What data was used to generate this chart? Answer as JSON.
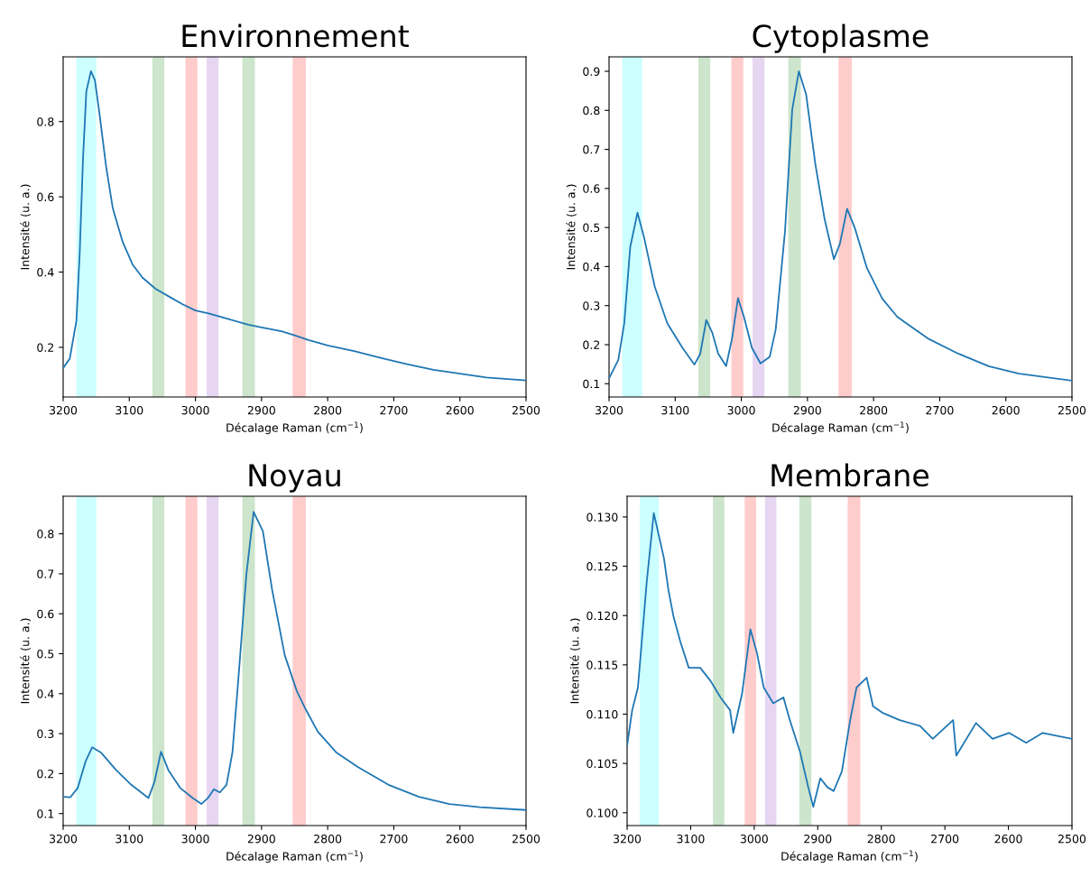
{
  "chart_data": [
    {
      "type": "line",
      "title": "Environnement",
      "xlabel": "Décalage Raman (cm$^{−1}$)",
      "ylabel": "Intensité (u. a.)",
      "xlim": [
        3200,
        2500
      ],
      "xticks": [
        3200,
        3100,
        3000,
        2900,
        2800,
        2700,
        2600,
        2500
      ],
      "ylim": [
        0.068,
        0.972
      ],
      "yticks": [
        0.2,
        0.4,
        0.6,
        0.8
      ],
      "grid": false,
      "legend": false,
      "bands": [
        {
          "axis": "x",
          "from": 3180,
          "to": 3150,
          "color": "#ccffff"
        },
        {
          "axis": "x",
          "from": 3065,
          "to": 3047,
          "color": "#cce5cc"
        },
        {
          "axis": "x",
          "from": 3015,
          "to": 2997,
          "color": "#ffcccc"
        },
        {
          "axis": "x",
          "from": 2983,
          "to": 2965,
          "color": "#e6d6f2"
        },
        {
          "axis": "x",
          "from": 2929,
          "to": 2910,
          "color": "#cce5cc"
        },
        {
          "axis": "x",
          "from": 2853,
          "to": 2833,
          "color": "#ffcccc"
        }
      ],
      "series": [
        {
          "color": "#1f77b4",
          "x": [
            3200,
            3190,
            3180,
            3175,
            3170,
            3165,
            3158,
            3152,
            3145,
            3135,
            3125,
            3110,
            3095,
            3080,
            3060,
            3040,
            3020,
            3000,
            2980,
            2950,
            2920,
            2900,
            2870,
            2850,
            2830,
            2800,
            2760,
            2720,
            2680,
            2640,
            2600,
            2560,
            2500
          ],
          "values": [
            0.145,
            0.17,
            0.27,
            0.45,
            0.7,
            0.88,
            0.934,
            0.91,
            0.82,
            0.68,
            0.57,
            0.48,
            0.42,
            0.385,
            0.355,
            0.335,
            0.315,
            0.298,
            0.29,
            0.275,
            0.26,
            0.253,
            0.243,
            0.232,
            0.22,
            0.205,
            0.19,
            0.172,
            0.155,
            0.14,
            0.13,
            0.12,
            0.112
          ]
        }
      ]
    },
    {
      "type": "line",
      "title": "Cytoplasme",
      "xlabel": "Décalage Raman (cm$^{−1}$)",
      "ylabel": "Intensité (u. a.)",
      "xlim": [
        3200,
        2500
      ],
      "xticks": [
        3200,
        3100,
        3000,
        2900,
        2800,
        2700,
        2600,
        2500
      ],
      "ylim": [
        0.066,
        0.937
      ],
      "yticks": [
        0.1,
        0.2,
        0.3,
        0.4,
        0.5,
        0.6,
        0.7,
        0.8,
        0.9
      ],
      "grid": false,
      "legend": false,
      "bands": [
        {
          "axis": "x",
          "from": 3180,
          "to": 3150,
          "color": "#ccffff"
        },
        {
          "axis": "x",
          "from": 3065,
          "to": 3047,
          "color": "#cce5cc"
        },
        {
          "axis": "x",
          "from": 3015,
          "to": 2997,
          "color": "#ffcccc"
        },
        {
          "axis": "x",
          "from": 2983,
          "to": 2965,
          "color": "#e6d6f2"
        },
        {
          "axis": "x",
          "from": 2929,
          "to": 2910,
          "color": "#cce5cc"
        },
        {
          "axis": "x",
          "from": 2853,
          "to": 2833,
          "color": "#ffcccc"
        }
      ],
      "series": [
        {
          "color": "#1f77b4",
          "x": [
            3200,
            3186,
            3177,
            3168,
            3157,
            3147,
            3131,
            3112,
            3089,
            3071,
            3062,
            3053,
            3044,
            3035,
            3023,
            3014,
            3005,
            2996,
            2984,
            2971,
            2957,
            2948,
            2934,
            2923,
            2913,
            2902,
            2888,
            2874,
            2860,
            2851,
            2840,
            2828,
            2810,
            2787,
            2764,
            2718,
            2672,
            2626,
            2580,
            2500
          ],
          "values": [
            0.114,
            0.161,
            0.255,
            0.45,
            0.538,
            0.474,
            0.349,
            0.255,
            0.192,
            0.149,
            0.177,
            0.263,
            0.231,
            0.177,
            0.145,
            0.216,
            0.319,
            0.271,
            0.192,
            0.152,
            0.169,
            0.239,
            0.489,
            0.802,
            0.9,
            0.841,
            0.662,
            0.521,
            0.419,
            0.458,
            0.548,
            0.497,
            0.396,
            0.318,
            0.271,
            0.216,
            0.177,
            0.145,
            0.126,
            0.108
          ]
        }
      ]
    },
    {
      "type": "line",
      "title": "Noyau",
      "xlabel": "Décalage Raman (cm$^{−1}$)",
      "ylabel": "Intensité (u. a.)",
      "xlim": [
        3200,
        2500
      ],
      "xticks": [
        3200,
        3100,
        3000,
        2900,
        2800,
        2700,
        2600,
        2500
      ],
      "ylim": [
        0.07,
        0.894
      ],
      "yticks": [
        0.1,
        0.2,
        0.3,
        0.4,
        0.5,
        0.6,
        0.7,
        0.8
      ],
      "grid": false,
      "legend": false,
      "bands": [
        {
          "axis": "x",
          "from": 3180,
          "to": 3150,
          "color": "#ccffff"
        },
        {
          "axis": "x",
          "from": 3065,
          "to": 3047,
          "color": "#cce5cc"
        },
        {
          "axis": "x",
          "from": 3015,
          "to": 2997,
          "color": "#ffcccc"
        },
        {
          "axis": "x",
          "from": 2983,
          "to": 2965,
          "color": "#e6d6f2"
        },
        {
          "axis": "x",
          "from": 2929,
          "to": 2910,
          "color": "#cce5cc"
        },
        {
          "axis": "x",
          "from": 2853,
          "to": 2833,
          "color": "#ffcccc"
        }
      ],
      "series": [
        {
          "color": "#1f77b4",
          "x": [
            3200,
            3189,
            3178,
            3166,
            3156,
            3143,
            3120,
            3097,
            3071,
            3062,
            3052,
            3041,
            3023,
            3004,
            2991,
            2981,
            2972,
            2963,
            2953,
            2944,
            2935,
            2923,
            2912,
            2898,
            2884,
            2865,
            2847,
            2833,
            2815,
            2787,
            2754,
            2708,
            2662,
            2616,
            2570,
            2500
          ],
          "values": [
            0.142,
            0.141,
            0.164,
            0.231,
            0.266,
            0.253,
            0.209,
            0.172,
            0.139,
            0.179,
            0.255,
            0.209,
            0.164,
            0.139,
            0.124,
            0.139,
            0.161,
            0.153,
            0.172,
            0.253,
            0.438,
            0.697,
            0.855,
            0.807,
            0.66,
            0.497,
            0.408,
            0.36,
            0.305,
            0.253,
            0.216,
            0.172,
            0.142,
            0.124,
            0.116,
            0.109
          ]
        }
      ]
    },
    {
      "type": "line",
      "title": "Membrane",
      "xlabel": "Décalage Raman (cm$^{−1}$)",
      "ylabel": "Intensité (u. a.)",
      "xlim": [
        3200,
        2500
      ],
      "xticks": [
        3200,
        3100,
        3000,
        2900,
        2800,
        2700,
        2600,
        2500
      ],
      "ylim": [
        0.0987,
        0.1321
      ],
      "yticks": [
        {
          "value": 0.1,
          "label": "0.100"
        },
        {
          "value": 0.105,
          "label": "0.105"
        },
        {
          "value": 0.11,
          "label": "0.110"
        },
        {
          "value": 0.115,
          "label": "0.115"
        },
        {
          "value": 0.12,
          "label": "0.120"
        },
        {
          "value": 0.125,
          "label": "0.125"
        },
        {
          "value": 0.13,
          "label": "0.130"
        }
      ],
      "grid": false,
      "legend": false,
      "bands": [
        {
          "axis": "x",
          "from": 3180,
          "to": 3150,
          "color": "#ccffff"
        },
        {
          "axis": "x",
          "from": 3065,
          "to": 3047,
          "color": "#cce5cc"
        },
        {
          "axis": "x",
          "from": 3015,
          "to": 2997,
          "color": "#ffcccc"
        },
        {
          "axis": "x",
          "from": 2983,
          "to": 2965,
          "color": "#e6d6f2"
        },
        {
          "axis": "x",
          "from": 2929,
          "to": 2910,
          "color": "#cce5cc"
        },
        {
          "axis": "x",
          "from": 2853,
          "to": 2833,
          "color": "#ffcccc"
        }
      ],
      "series": [
        {
          "color": "#1f77b4",
          "x": [
            3200,
            3192,
            3183,
            3177,
            3169,
            3158,
            3150,
            3142,
            3135,
            3127,
            3116,
            3103,
            3085,
            3069,
            3053,
            3038,
            3033,
            3019,
            3006,
            2996,
            2985,
            2970,
            2954,
            2944,
            2928,
            2915,
            2907,
            2896,
            2885,
            2875,
            2862,
            2849,
            2839,
            2823,
            2813,
            2797,
            2771,
            2739,
            2719,
            2687,
            2682,
            2651,
            2625,
            2599,
            2572,
            2546,
            2500
          ],
          "values": [
            0.1068,
            0.1104,
            0.1127,
            0.1173,
            0.1235,
            0.1304,
            0.1281,
            0.1258,
            0.1226,
            0.1199,
            0.1173,
            0.1147,
            0.1147,
            0.1134,
            0.1117,
            0.1104,
            0.1081,
            0.1121,
            0.1186,
            0.1163,
            0.1127,
            0.1111,
            0.1117,
            0.1094,
            0.1062,
            0.1026,
            0.1006,
            0.1035,
            0.1026,
            0.1022,
            0.1042,
            0.1094,
            0.1127,
            0.1137,
            0.1108,
            0.1101,
            0.1094,
            0.1088,
            0.1075,
            0.1094,
            0.1058,
            0.1091,
            0.1075,
            0.1081,
            0.1071,
            0.1081,
            0.1075
          ]
        }
      ]
    }
  ]
}
